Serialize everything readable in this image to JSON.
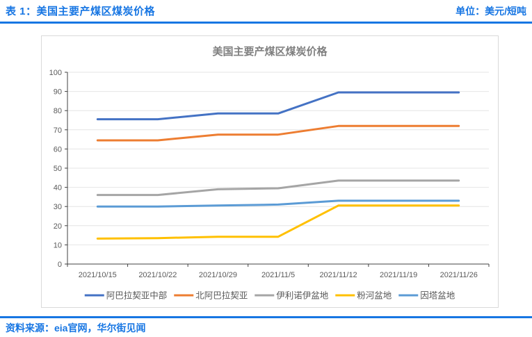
{
  "page": {
    "table_label": "表 1：美国主要产煤区煤炭价格",
    "unit_label": "单位：美元/短吨",
    "source_label": "资料来源：eia官网，华尔街见闻",
    "accent_color": "#1776e3"
  },
  "chart_data": {
    "type": "line",
    "title": "美国主要产煤区煤炭价格",
    "title_color": "#7f7f7f",
    "categories": [
      "2021/10/15",
      "2021/10/22",
      "2021/10/29",
      "2021/11/5",
      "2021/11/12",
      "2021/11/19",
      "2021/11/26"
    ],
    "series": [
      {
        "name": "阿巴拉契亚中部",
        "color": "#4472c4",
        "values": [
          75.5,
          75.5,
          78.5,
          78.5,
          89.5,
          89.5,
          89.5
        ]
      },
      {
        "name": "北阿巴拉契亚",
        "color": "#ed7d31",
        "values": [
          64.5,
          64.5,
          67.5,
          67.5,
          72,
          72,
          72
        ]
      },
      {
        "name": "伊利诺伊盆地",
        "color": "#a5a5a5",
        "values": [
          36,
          36,
          39,
          39.5,
          43.5,
          43.5,
          43.5
        ]
      },
      {
        "name": "粉河盆地",
        "color": "#ffc000",
        "values": [
          13.25,
          13.5,
          14.25,
          14.25,
          30.5,
          30.5,
          30.5
        ]
      },
      {
        "name": "因塔盆地",
        "color": "#5b9bd5",
        "values": [
          30,
          30,
          30.5,
          31,
          33,
          33,
          33
        ]
      }
    ],
    "ylim": [
      0,
      100
    ],
    "ytick_step": 10,
    "grid": true,
    "legend_position": "bottom",
    "xlabel": "",
    "ylabel": "",
    "tick_label_color": "#595959",
    "axis_color": "#404040",
    "grid_color": "#e4e4e4"
  }
}
